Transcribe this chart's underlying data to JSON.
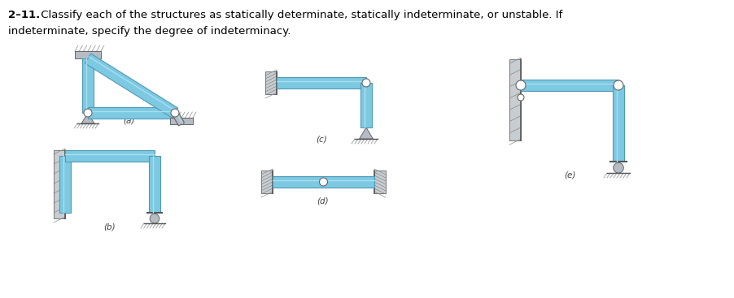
{
  "title_bold": "2–11.",
  "title_normal": " Classify each of the structures as statically determinate, statically indeterminate, or unstable. If",
  "title_line2": "indeterminate, specify the degree of indeterminacy.",
  "bg": "#ffffff",
  "beam_fill": "#7dc9e2",
  "beam_edge": "#4e9ab5",
  "beam_highlight": "#aadff0",
  "wall_fill": "#c8cdd2",
  "wall_edge": "#777777",
  "hatch_color": "#888888",
  "pin_fill": "#ffffff",
  "pin_edge": "#666666",
  "support_fill": "#b5bcc4",
  "support_edge": "#666666",
  "label_a": "(a)",
  "label_b": "(b)",
  "label_c": "(c)",
  "label_d": "(d)",
  "label_e": "(e)"
}
